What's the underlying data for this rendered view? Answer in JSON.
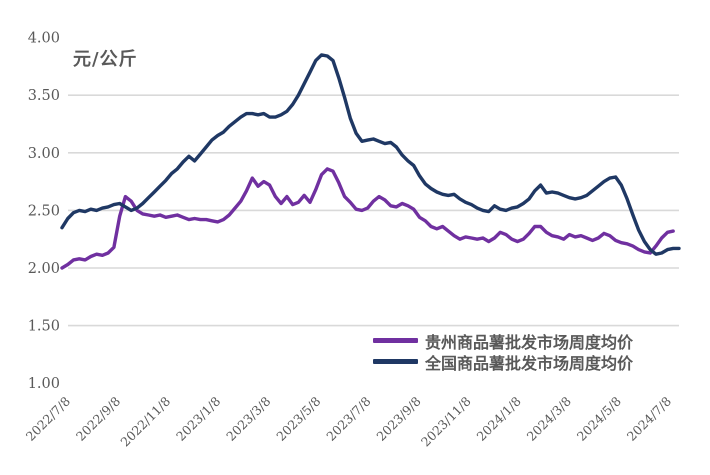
{
  "page": {
    "background": "#FFFFFF"
  },
  "chart_data": {
    "type": "line",
    "title": "",
    "unit_label": "元/公斤",
    "ylabel": "元/公斤",
    "xlabel": "",
    "ylim": [
      1.0,
      4.0
    ],
    "y_tick_values": [
      4.0,
      3.5,
      3.0,
      2.5,
      2.0,
      1.5,
      1.0
    ],
    "y_tick_labels": [
      "4.00",
      "3.50",
      "3.00",
      "2.50",
      "2.00",
      "1.50",
      "1.00"
    ],
    "gridline_values": [
      3.5,
      3.0,
      2.5,
      2.0,
      1.5
    ],
    "gridline_color": "#D9D9D9",
    "axis_text_color": "#595959",
    "x_tick_labels": [
      "2022/7/8",
      "2022/9/8",
      "2022/11/8",
      "2023/1/8",
      "2023/3/8",
      "2023/5/8",
      "2023/7/8",
      "2023/9/8",
      "2023/11/8",
      "2024/1/8",
      "2024/3/8",
      "2024/5/8",
      "2024/7/8"
    ],
    "x_unit": "weekly",
    "legend_position": "inside-bottom-right",
    "series": [
      {
        "name": "贵州商品薯批发市场周度均价",
        "color": "#7030A0",
        "values": [
          2.0,
          2.03,
          2.07,
          2.08,
          2.07,
          2.1,
          2.12,
          2.11,
          2.13,
          2.18,
          2.45,
          2.62,
          2.58,
          2.5,
          2.47,
          2.46,
          2.45,
          2.46,
          2.44,
          2.45,
          2.46,
          2.44,
          2.42,
          2.43,
          2.42,
          2.42,
          2.41,
          2.4,
          2.42,
          2.46,
          2.52,
          2.58,
          2.67,
          2.78,
          2.71,
          2.75,
          2.72,
          2.62,
          2.56,
          2.62,
          2.55,
          2.57,
          2.63,
          2.57,
          2.68,
          2.81,
          2.86,
          2.84,
          2.74,
          2.62,
          2.57,
          2.51,
          2.5,
          2.52,
          2.58,
          2.62,
          2.59,
          2.54,
          2.53,
          2.56,
          2.54,
          2.51,
          2.44,
          2.41,
          2.36,
          2.34,
          2.36,
          2.32,
          2.28,
          2.25,
          2.27,
          2.26,
          2.25,
          2.26,
          2.23,
          2.26,
          2.31,
          2.29,
          2.25,
          2.23,
          2.25,
          2.3,
          2.36,
          2.36,
          2.31,
          2.28,
          2.27,
          2.25,
          2.29,
          2.27,
          2.28,
          2.26,
          2.24,
          2.26,
          2.3,
          2.28,
          2.24,
          2.22,
          2.21,
          2.19,
          2.16,
          2.14,
          2.13,
          2.19,
          2.26,
          2.31,
          2.32
        ]
      },
      {
        "name": "全国商品薯批发市场周度均价",
        "color": "#1F3864",
        "values": [
          2.35,
          2.43,
          2.48,
          2.5,
          2.49,
          2.51,
          2.5,
          2.52,
          2.53,
          2.55,
          2.56,
          2.53,
          2.5,
          2.52,
          2.56,
          2.61,
          2.66,
          2.71,
          2.76,
          2.82,
          2.86,
          2.92,
          2.97,
          2.93,
          2.99,
          3.05,
          3.11,
          3.15,
          3.18,
          3.23,
          3.27,
          3.31,
          3.34,
          3.34,
          3.33,
          3.34,
          3.31,
          3.31,
          3.33,
          3.36,
          3.42,
          3.5,
          3.6,
          3.7,
          3.8,
          3.85,
          3.84,
          3.8,
          3.65,
          3.48,
          3.3,
          3.17,
          3.1,
          3.11,
          3.12,
          3.1,
          3.08,
          3.09,
          3.05,
          2.98,
          2.93,
          2.89,
          2.8,
          2.73,
          2.69,
          2.66,
          2.64,
          2.63,
          2.64,
          2.6,
          2.57,
          2.55,
          2.52,
          2.5,
          2.49,
          2.54,
          2.51,
          2.5,
          2.52,
          2.53,
          2.56,
          2.6,
          2.67,
          2.72,
          2.65,
          2.66,
          2.65,
          2.63,
          2.61,
          2.6,
          2.61,
          2.63,
          2.67,
          2.71,
          2.75,
          2.78,
          2.79,
          2.72,
          2.6,
          2.46,
          2.33,
          2.23,
          2.16,
          2.12,
          2.13,
          2.16,
          2.17,
          2.17
        ]
      }
    ]
  }
}
